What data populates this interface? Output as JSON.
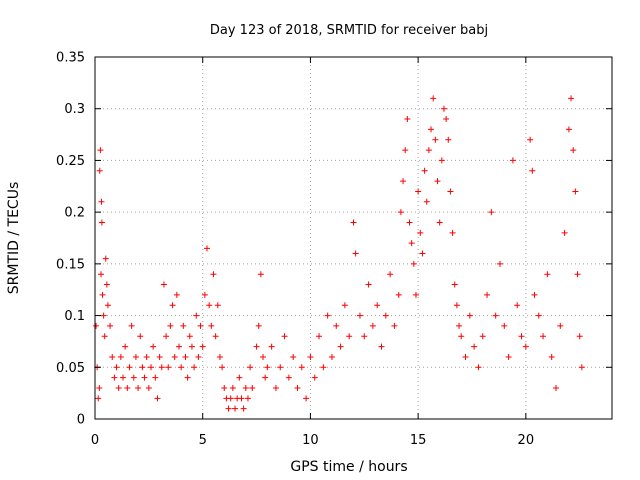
{
  "chart_data": {
    "type": "scatter",
    "title": "Day 123 of 2018, SRMTID for receiver babj",
    "xlabel": "GPS time / hours",
    "ylabel": "SRMTID / TECUs",
    "xlim": [
      0,
      24
    ],
    "ylim": [
      0,
      0.35
    ],
    "grid": true,
    "marker": "+",
    "color": "#ff0000",
    "x_ticks": [
      0,
      5,
      10,
      15,
      20
    ],
    "x_tick_labels": [
      "0",
      "5",
      "10",
      "15",
      "20"
    ],
    "y_ticks": [
      0,
      0.05,
      0.1,
      0.15,
      0.2,
      0.25,
      0.3,
      0.35
    ],
    "y_tick_labels": [
      "0",
      "0.05",
      "0.1",
      "0.15",
      "0.2",
      "0.25",
      "0.3",
      "0.35"
    ],
    "series": [
      {
        "name": "SRMTID",
        "points": [
          [
            0.05,
            0.09
          ],
          [
            0.1,
            0.05
          ],
          [
            0.15,
            0.02
          ],
          [
            0.2,
            0.03
          ],
          [
            0.22,
            0.24
          ],
          [
            0.25,
            0.26
          ],
          [
            0.28,
            0.14
          ],
          [
            0.3,
            0.21
          ],
          [
            0.32,
            0.19
          ],
          [
            0.35,
            0.12
          ],
          [
            0.4,
            0.1
          ],
          [
            0.45,
            0.08
          ],
          [
            0.5,
            0.155
          ],
          [
            0.55,
            0.13
          ],
          [
            0.6,
            0.11
          ],
          [
            0.7,
            0.09
          ],
          [
            0.8,
            0.06
          ],
          [
            0.9,
            0.04
          ],
          [
            1.0,
            0.05
          ],
          [
            1.1,
            0.03
          ],
          [
            1.2,
            0.06
          ],
          [
            1.3,
            0.04
          ],
          [
            1.4,
            0.07
          ],
          [
            1.5,
            0.03
          ],
          [
            1.6,
            0.05
          ],
          [
            1.7,
            0.09
          ],
          [
            1.8,
            0.04
          ],
          [
            1.9,
            0.06
          ],
          [
            2.0,
            0.03
          ],
          [
            2.1,
            0.08
          ],
          [
            2.2,
            0.05
          ],
          [
            2.3,
            0.04
          ],
          [
            2.4,
            0.06
          ],
          [
            2.5,
            0.03
          ],
          [
            2.6,
            0.05
          ],
          [
            2.7,
            0.07
          ],
          [
            2.8,
            0.04
          ],
          [
            2.9,
            0.02
          ],
          [
            3.0,
            0.06
          ],
          [
            3.1,
            0.05
          ],
          [
            3.2,
            0.13
          ],
          [
            3.3,
            0.08
          ],
          [
            3.4,
            0.05
          ],
          [
            3.5,
            0.09
          ],
          [
            3.6,
            0.11
          ],
          [
            3.7,
            0.06
          ],
          [
            3.8,
            0.12
          ],
          [
            3.9,
            0.07
          ],
          [
            4.0,
            0.05
          ],
          [
            4.1,
            0.09
          ],
          [
            4.2,
            0.06
          ],
          [
            4.3,
            0.04
          ],
          [
            4.4,
            0.08
          ],
          [
            4.5,
            0.07
          ],
          [
            4.6,
            0.05
          ],
          [
            4.7,
            0.1
          ],
          [
            4.8,
            0.06
          ],
          [
            4.9,
            0.09
          ],
          [
            5.0,
            0.07
          ],
          [
            5.1,
            0.12
          ],
          [
            5.2,
            0.165
          ],
          [
            5.3,
            0.11
          ],
          [
            5.4,
            0.09
          ],
          [
            5.5,
            0.14
          ],
          [
            5.6,
            0.08
          ],
          [
            5.7,
            0.11
          ],
          [
            5.8,
            0.06
          ],
          [
            5.9,
            0.05
          ],
          [
            6.0,
            0.03
          ],
          [
            6.1,
            0.02
          ],
          [
            6.2,
            0.01
          ],
          [
            6.3,
            0.02
          ],
          [
            6.4,
            0.03
          ],
          [
            6.5,
            0.01
          ],
          [
            6.6,
            0.02
          ],
          [
            6.7,
            0.04
          ],
          [
            6.8,
            0.02
          ],
          [
            6.9,
            0.01
          ],
          [
            7.0,
            0.03
          ],
          [
            7.1,
            0.02
          ],
          [
            7.2,
            0.05
          ],
          [
            7.3,
            0.03
          ],
          [
            7.5,
            0.07
          ],
          [
            7.6,
            0.09
          ],
          [
            7.7,
            0.14
          ],
          [
            7.8,
            0.06
          ],
          [
            7.9,
            0.04
          ],
          [
            8.0,
            0.05
          ],
          [
            8.2,
            0.07
          ],
          [
            8.4,
            0.03
          ],
          [
            8.6,
            0.05
          ],
          [
            8.8,
            0.08
          ],
          [
            9.0,
            0.04
          ],
          [
            9.2,
            0.06
          ],
          [
            9.4,
            0.03
          ],
          [
            9.6,
            0.05
          ],
          [
            9.8,
            0.02
          ],
          [
            10.0,
            0.06
          ],
          [
            10.2,
            0.04
          ],
          [
            10.4,
            0.08
          ],
          [
            10.6,
            0.05
          ],
          [
            10.8,
            0.1
          ],
          [
            11.0,
            0.06
          ],
          [
            11.2,
            0.09
          ],
          [
            11.4,
            0.07
          ],
          [
            11.6,
            0.11
          ],
          [
            11.8,
            0.08
          ],
          [
            12.0,
            0.19
          ],
          [
            12.1,
            0.16
          ],
          [
            12.3,
            0.1
          ],
          [
            12.5,
            0.08
          ],
          [
            12.7,
            0.13
          ],
          [
            12.9,
            0.09
          ],
          [
            13.1,
            0.11
          ],
          [
            13.3,
            0.07
          ],
          [
            13.5,
            0.1
          ],
          [
            13.7,
            0.14
          ],
          [
            13.9,
            0.09
          ],
          [
            14.1,
            0.12
          ],
          [
            14.2,
            0.2
          ],
          [
            14.3,
            0.23
          ],
          [
            14.4,
            0.26
          ],
          [
            14.5,
            0.29
          ],
          [
            14.6,
            0.19
          ],
          [
            14.7,
            0.17
          ],
          [
            14.8,
            0.15
          ],
          [
            14.9,
            0.12
          ],
          [
            15.0,
            0.22
          ],
          [
            15.1,
            0.18
          ],
          [
            15.2,
            0.16
          ],
          [
            15.3,
            0.24
          ],
          [
            15.4,
            0.21
          ],
          [
            15.5,
            0.26
          ],
          [
            15.6,
            0.28
          ],
          [
            15.7,
            0.31
          ],
          [
            15.8,
            0.27
          ],
          [
            15.9,
            0.23
          ],
          [
            16.0,
            0.19
          ],
          [
            16.1,
            0.25
          ],
          [
            16.2,
            0.3
          ],
          [
            16.3,
            0.29
          ],
          [
            16.4,
            0.27
          ],
          [
            16.5,
            0.22
          ],
          [
            16.6,
            0.18
          ],
          [
            16.7,
            0.13
          ],
          [
            16.8,
            0.11
          ],
          [
            16.9,
            0.09
          ],
          [
            17.0,
            0.08
          ],
          [
            17.2,
            0.06
          ],
          [
            17.4,
            0.1
          ],
          [
            17.6,
            0.07
          ],
          [
            17.8,
            0.05
          ],
          [
            18.0,
            0.08
          ],
          [
            18.2,
            0.12
          ],
          [
            18.4,
            0.2
          ],
          [
            18.6,
            0.1
          ],
          [
            18.8,
            0.15
          ],
          [
            19.0,
            0.09
          ],
          [
            19.2,
            0.06
          ],
          [
            19.4,
            0.25
          ],
          [
            19.6,
            0.11
          ],
          [
            19.8,
            0.08
          ],
          [
            20.0,
            0.07
          ],
          [
            20.2,
            0.27
          ],
          [
            20.3,
            0.24
          ],
          [
            20.4,
            0.12
          ],
          [
            20.6,
            0.1
          ],
          [
            20.8,
            0.08
          ],
          [
            21.0,
            0.14
          ],
          [
            21.2,
            0.06
          ],
          [
            21.4,
            0.03
          ],
          [
            21.6,
            0.09
          ],
          [
            21.8,
            0.18
          ],
          [
            22.0,
            0.28
          ],
          [
            22.1,
            0.31
          ],
          [
            22.2,
            0.26
          ],
          [
            22.3,
            0.22
          ],
          [
            22.4,
            0.14
          ],
          [
            22.5,
            0.08
          ],
          [
            22.6,
            0.05
          ]
        ]
      }
    ]
  }
}
